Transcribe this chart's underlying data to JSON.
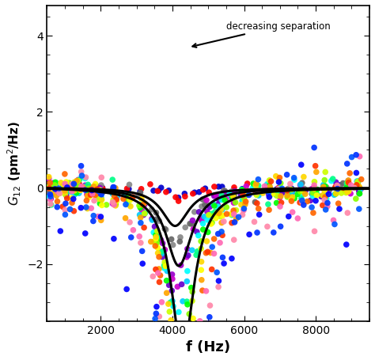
{
  "xlabel": "f (Hz)",
  "xlim": [
    500,
    9500
  ],
  "ylim": [
    -3.5,
    4.8
  ],
  "yticks": [
    -2,
    0,
    2,
    4
  ],
  "xticks": [
    2000,
    4000,
    6000,
    8000
  ],
  "annotation_text": "decreasing separation",
  "background_color": "#FFFFFF",
  "curve_color": "#000000",
  "curve_linewidth": 2.2,
  "curve_params": [
    {
      "amplitude": 4.3,
      "f0": 4300,
      "Q": 5.5
    },
    {
      "amplitude": 2.05,
      "f0": 4200,
      "Q": 4.8
    },
    {
      "amplitude": 1.0,
      "f0": 4100,
      "Q": 4.5
    }
  ],
  "dot_sets": [
    {
      "color": "#0000CC",
      "scale": 0.04,
      "f0": 4300,
      "Q": 5.5
    },
    {
      "color": "#FF0000",
      "scale": 0.07,
      "f0": 4300,
      "Q": 5.5
    },
    {
      "color": "#888888",
      "scale": 0.35,
      "f0": 4100,
      "Q": 4.5
    },
    {
      "color": "#666666",
      "scale": 0.38,
      "f0": 4100,
      "Q": 4.5
    },
    {
      "color": "#9900CC",
      "scale": 0.55,
      "f0": 4100,
      "Q": 4.5
    },
    {
      "color": "#CC00CC",
      "scale": 0.6,
      "f0": 4100,
      "Q": 4.5
    },
    {
      "color": "#6600CC",
      "scale": 0.65,
      "f0": 4100,
      "Q": 4.5
    },
    {
      "color": "#00CCFF",
      "scale": 0.72,
      "f0": 4150,
      "Q": 4.6
    },
    {
      "color": "#00FFFF",
      "scale": 0.78,
      "f0": 4150,
      "Q": 4.7
    },
    {
      "color": "#00FF88",
      "scale": 0.88,
      "f0": 4200,
      "Q": 4.8
    },
    {
      "color": "#00FF00",
      "scale": 0.95,
      "f0": 4200,
      "Q": 4.9
    },
    {
      "color": "#88FF00",
      "scale": 1.02,
      "f0": 4250,
      "Q": 5.0
    },
    {
      "color": "#CCFF00",
      "scale": 1.12,
      "f0": 4250,
      "Q": 5.0
    },
    {
      "color": "#FFFF00",
      "scale": 1.22,
      "f0": 4280,
      "Q": 5.1
    },
    {
      "color": "#FFD700",
      "scale": 1.35,
      "f0": 4280,
      "Q": 5.2
    },
    {
      "color": "#FFA500",
      "scale": 1.55,
      "f0": 4300,
      "Q": 5.3
    },
    {
      "color": "#FF6600",
      "scale": 1.8,
      "f0": 4300,
      "Q": 5.4
    },
    {
      "color": "#FF3300",
      "scale": 2.2,
      "f0": 4300,
      "Q": 5.5
    },
    {
      "color": "#FF69B4",
      "scale": 2.55,
      "f0": 4300,
      "Q": 5.5
    },
    {
      "color": "#FF88AA",
      "scale": 2.85,
      "f0": 4300,
      "Q": 5.5
    },
    {
      "color": "#0055FF",
      "scale": 3.2,
      "f0": 4300,
      "Q": 5.5
    },
    {
      "color": "#0033FF",
      "scale": 3.55,
      "f0": 4300,
      "Q": 5.5
    },
    {
      "color": "#0000FF",
      "scale": 4.3,
      "f0": 4300,
      "Q": 5.5
    }
  ]
}
